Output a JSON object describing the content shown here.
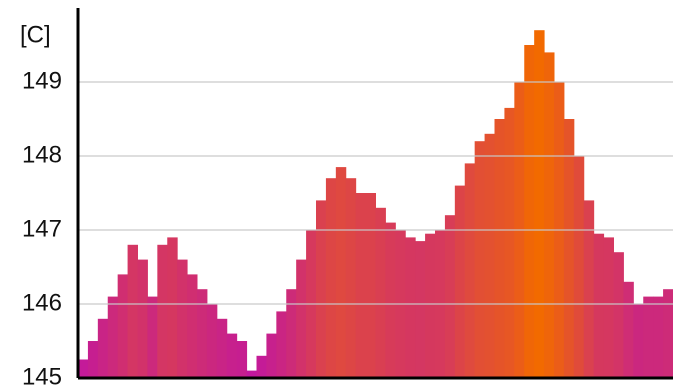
{
  "chart_data": {
    "type": "bar",
    "y_label": "[C]",
    "categories": [
      null,
      null,
      null,
      null,
      null,
      null,
      null,
      null,
      null,
      null,
      null,
      null,
      null,
      null,
      null,
      null,
      null,
      null,
      null,
      null,
      null,
      null,
      null,
      null,
      null,
      null,
      null,
      null,
      null,
      null,
      null,
      null,
      null,
      null,
      null,
      null,
      null,
      null,
      null,
      null,
      null,
      null,
      null,
      null,
      null,
      null,
      null,
      null,
      null,
      null,
      null,
      null,
      null,
      null,
      null,
      null,
      null,
      null,
      null,
      null
    ],
    "values": [
      145.25,
      145.5,
      145.8,
      146.1,
      146.4,
      146.8,
      146.6,
      146.1,
      146.8,
      146.9,
      146.6,
      146.4,
      146.2,
      146.0,
      145.8,
      145.6,
      145.5,
      145.1,
      145.3,
      145.6,
      145.9,
      146.2,
      146.6,
      147.0,
      147.4,
      147.7,
      147.85,
      147.7,
      147.5,
      147.5,
      147.3,
      147.1,
      147.0,
      146.9,
      146.85,
      146.95,
      147.0,
      147.2,
      147.6,
      147.9,
      148.2,
      148.3,
      148.5,
      148.65,
      149.0,
      149.5,
      149.7,
      149.4,
      149.0,
      148.5,
      148.0,
      147.4,
      146.95,
      146.9,
      146.7,
      146.3,
      146.0,
      146.1,
      146.1,
      146.2
    ],
    "colors": [
      "#c2179e",
      "#f26a00"
    ],
    "ylim": [
      145,
      150
    ],
    "yticks": [
      145,
      146,
      147,
      148,
      149
    ],
    "grid": true
  }
}
